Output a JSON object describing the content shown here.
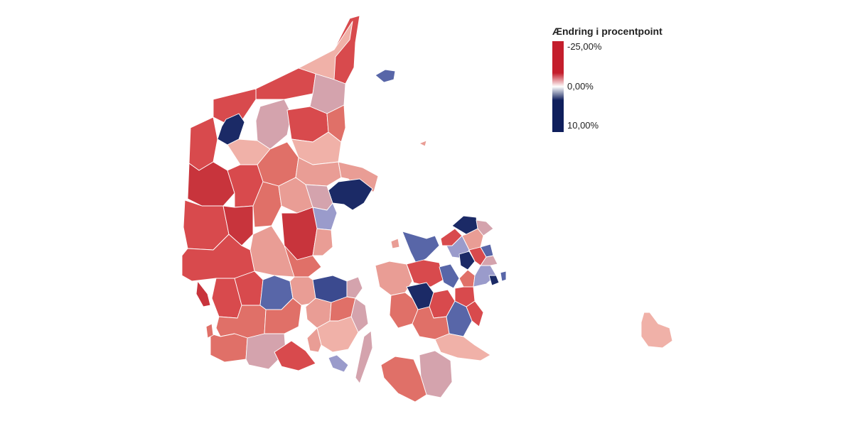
{
  "legend": {
    "title": "Ændring i procentpoint",
    "labels": [
      "-25,00%",
      "0,00%",
      "10,00%"
    ],
    "stops": [
      "#c41e2c",
      "#ffffff",
      "#0f1f5c"
    ]
  },
  "colors": {
    "deep_red": "#c8343c",
    "red": "#d84a4d",
    "mid_red": "#e07068",
    "light_red": "#e99d95",
    "pale_red": "#f0b1a8",
    "mauve": "#d4a3ad",
    "lavender": "#9a9bcb",
    "blue": "#5866a8",
    "dark_blue": "#1b2a66"
  }
}
